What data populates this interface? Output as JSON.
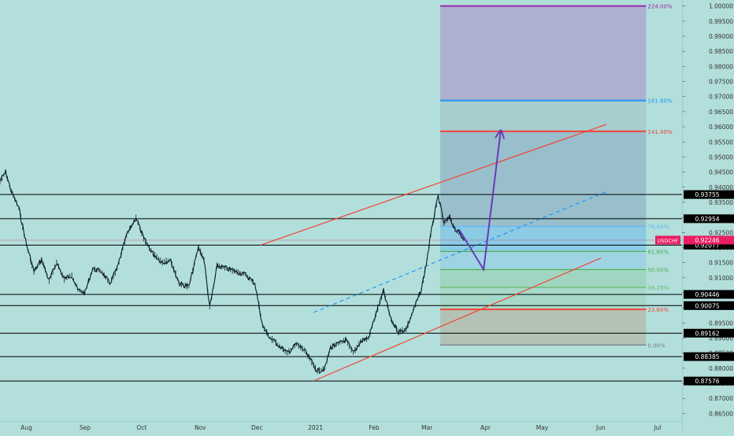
{
  "colors": {
    "background": "#b2dfdb",
    "candles": "#0d1b2a",
    "hline": "#000000",
    "trend_red": "#f44336",
    "trend_blue_dashed": "#2196f3",
    "arrow": "#673ab7",
    "current_price": "#e91e63",
    "fib_224": "#9c27b0",
    "fib_1618": "#2196f3",
    "fib_1414": "#f44336",
    "fib_786": "#64b5f6",
    "fib_618": "#4caf50",
    "fib_50": "#4caf50",
    "fib_382": "#66bb6a",
    "fib_236": "#f44336",
    "fib_0": "#787b86"
  },
  "chart_data": {
    "type": "line",
    "symbol": "USDCHF",
    "current_price_label": "0.92246",
    "current_price": 0.92246,
    "y_axis": {
      "ylim": [
        0.8625,
        1.002
      ],
      "ticks": [
        "1.00000",
        "0.99500",
        "0.99000",
        "0.98500",
        "0.98000",
        "0.97500",
        "0.97000",
        "0.96500",
        "0.96000",
        "0.95500",
        "0.95000",
        "0.94500",
        "0.94000",
        "0.93500",
        "0.93000",
        "0.92500",
        "0.92000",
        "0.91500",
        "0.91000",
        "0.90500",
        "0.90000",
        "0.89500",
        "0.89000",
        "0.88500",
        "0.88000",
        "0.87500",
        "0.87000",
        "0.86500"
      ]
    },
    "x_axis": {
      "xlim": [
        "2020-07-18",
        "2021-07-14"
      ],
      "ticks": [
        {
          "label": "Aug",
          "date": "2020-08-01"
        },
        {
          "label": "Sep",
          "date": "2020-09-01"
        },
        {
          "label": "Oct",
          "date": "2020-10-01"
        },
        {
          "label": "Nov",
          "date": "2020-11-01"
        },
        {
          "label": "Dec",
          "date": "2020-12-01"
        },
        {
          "label": "2021",
          "date": "2021-01-01"
        },
        {
          "label": "Feb",
          "date": "2021-02-01"
        },
        {
          "label": "Mar",
          "date": "2021-03-01"
        },
        {
          "label": "Apr",
          "date": "2021-04-01"
        },
        {
          "label": "May",
          "date": "2021-05-01"
        },
        {
          "label": "Jun",
          "date": "2021-06-01"
        },
        {
          "label": "Jul",
          "date": "2021-07-01"
        }
      ]
    },
    "horizontal_levels": [
      {
        "label": "0.93755",
        "value": 0.93755
      },
      {
        "label": "0.92954",
        "value": 0.92954
      },
      {
        "label": "0.92077",
        "value": 0.92077
      },
      {
        "label": "0.90446",
        "value": 0.90446
      },
      {
        "label": "0.90075",
        "value": 0.90075
      },
      {
        "label": "0.89162",
        "value": 0.89162
      },
      {
        "label": "0.88385",
        "value": 0.88385
      },
      {
        "label": "0.87576",
        "value": 0.87576
      }
    ],
    "fibonacci": [
      {
        "label": "224.00%",
        "value": 1.0,
        "color_key": "fib_224"
      },
      {
        "label": "161.80%",
        "value": 0.9687,
        "color_key": "fib_1618"
      },
      {
        "label": "141.40%",
        "value": 0.9585,
        "color_key": "fib_1414"
      },
      {
        "label": "78.60%",
        "value": 0.927,
        "color_key": "fib_786"
      },
      {
        "label": "61.80%",
        "value": 0.9187,
        "color_key": "fib_618"
      },
      {
        "label": "50.00%",
        "value": 0.9127,
        "color_key": "fib_50"
      },
      {
        "label": "38.20%",
        "value": 0.9068,
        "color_key": "fib_382"
      },
      {
        "label": "23.60%",
        "value": 0.8995,
        "color_key": "fib_236"
      },
      {
        "label": "0.00%",
        "value": 0.8877,
        "color_key": "fib_0"
      }
    ],
    "fib_x_range": [
      "2021-03-08",
      "2021-06-25"
    ],
    "price_series": [
      {
        "x": "2020-07-18",
        "y": 0.942
      },
      {
        "x": "2020-07-21",
        "y": 0.945
      },
      {
        "x": "2020-07-24",
        "y": 0.9385
      },
      {
        "x": "2020-07-28",
        "y": 0.933
      },
      {
        "x": "2020-08-01",
        "y": 0.921
      },
      {
        "x": "2020-08-05",
        "y": 0.912
      },
      {
        "x": "2020-08-09",
        "y": 0.916
      },
      {
        "x": "2020-08-13",
        "y": 0.909
      },
      {
        "x": "2020-08-17",
        "y": 0.915
      },
      {
        "x": "2020-08-21",
        "y": 0.9095
      },
      {
        "x": "2020-08-25",
        "y": 0.911
      },
      {
        "x": "2020-08-28",
        "y": 0.906
      },
      {
        "x": "2020-09-01",
        "y": 0.905
      },
      {
        "x": "2020-09-05",
        "y": 0.913
      },
      {
        "x": "2020-09-10",
        "y": 0.912
      },
      {
        "x": "2020-09-14",
        "y": 0.908
      },
      {
        "x": "2020-09-18",
        "y": 0.913
      },
      {
        "x": "2020-09-23",
        "y": 0.924
      },
      {
        "x": "2020-09-28",
        "y": 0.93
      },
      {
        "x": "2020-10-02",
        "y": 0.923
      },
      {
        "x": "2020-10-07",
        "y": 0.918
      },
      {
        "x": "2020-10-12",
        "y": 0.915
      },
      {
        "x": "2020-10-16",
        "y": 0.916
      },
      {
        "x": "2020-10-21",
        "y": 0.908
      },
      {
        "x": "2020-10-26",
        "y": 0.907
      },
      {
        "x": "2020-10-31",
        "y": 0.92
      },
      {
        "x": "2020-11-03",
        "y": 0.916
      },
      {
        "x": "2020-11-06",
        "y": 0.9
      },
      {
        "x": "2020-11-10",
        "y": 0.914
      },
      {
        "x": "2020-11-15",
        "y": 0.913
      },
      {
        "x": "2020-11-20",
        "y": 0.912
      },
      {
        "x": "2020-11-25",
        "y": 0.911
      },
      {
        "x": "2020-11-30",
        "y": 0.908
      },
      {
        "x": "2020-12-04",
        "y": 0.894
      },
      {
        "x": "2020-12-08",
        "y": 0.89
      },
      {
        "x": "2020-12-12",
        "y": 0.888
      },
      {
        "x": "2020-12-17",
        "y": 0.885
      },
      {
        "x": "2020-12-22",
        "y": 0.888
      },
      {
        "x": "2020-12-26",
        "y": 0.886
      },
      {
        "x": "2020-12-30",
        "y": 0.882
      },
      {
        "x": "2021-01-02",
        "y": 0.879
      },
      {
        "x": "2021-01-06",
        "y": 0.88
      },
      {
        "x": "2021-01-09",
        "y": 0.887
      },
      {
        "x": "2021-01-13",
        "y": 0.888
      },
      {
        "x": "2021-01-17",
        "y": 0.8895
      },
      {
        "x": "2021-01-21",
        "y": 0.885
      },
      {
        "x": "2021-01-25",
        "y": 0.889
      },
      {
        "x": "2021-01-29",
        "y": 0.89
      },
      {
        "x": "2021-02-03",
        "y": 0.9
      },
      {
        "x": "2021-02-06",
        "y": 0.9055
      },
      {
        "x": "2021-02-10",
        "y": 0.896
      },
      {
        "x": "2021-02-14",
        "y": 0.892
      },
      {
        "x": "2021-02-18",
        "y": 0.893
      },
      {
        "x": "2021-02-22",
        "y": 0.8995
      },
      {
        "x": "2021-02-26",
        "y": 0.906
      },
      {
        "x": "2021-03-01",
        "y": 0.916
      },
      {
        "x": "2021-03-04",
        "y": 0.928
      },
      {
        "x": "2021-03-07",
        "y": 0.937
      },
      {
        "x": "2021-03-10",
        "y": 0.928
      },
      {
        "x": "2021-03-13",
        "y": 0.93
      },
      {
        "x": "2021-03-16",
        "y": 0.926
      },
      {
        "x": "2021-03-19",
        "y": 0.924
      },
      {
        "x": "2021-03-21",
        "y": 0.9225
      }
    ],
    "trend_lines": [
      {
        "style": "solid",
        "color_key": "trend_red",
        "from": {
          "x": "2020-12-31",
          "y": 0.8758
        },
        "to": {
          "x": "2021-06-01",
          "y": 0.9165
        }
      },
      {
        "style": "solid",
        "color_key": "trend_red",
        "from": {
          "x": "2020-12-03",
          "y": 0.9208
        },
        "to": {
          "x": "2021-06-04",
          "y": 0.9608
        }
      },
      {
        "style": "dashed",
        "color_key": "trend_blue_dashed",
        "from": {
          "x": "2020-12-31",
          "y": 0.8985
        },
        "to": {
          "x": "2021-06-04",
          "y": 0.9385
        }
      }
    ],
    "projection_path": [
      {
        "x": "2021-03-18",
        "y": 0.926
      },
      {
        "x": "2021-03-31",
        "y": 0.9127
      },
      {
        "x": "2021-04-09",
        "y": 0.9585
      }
    ]
  }
}
